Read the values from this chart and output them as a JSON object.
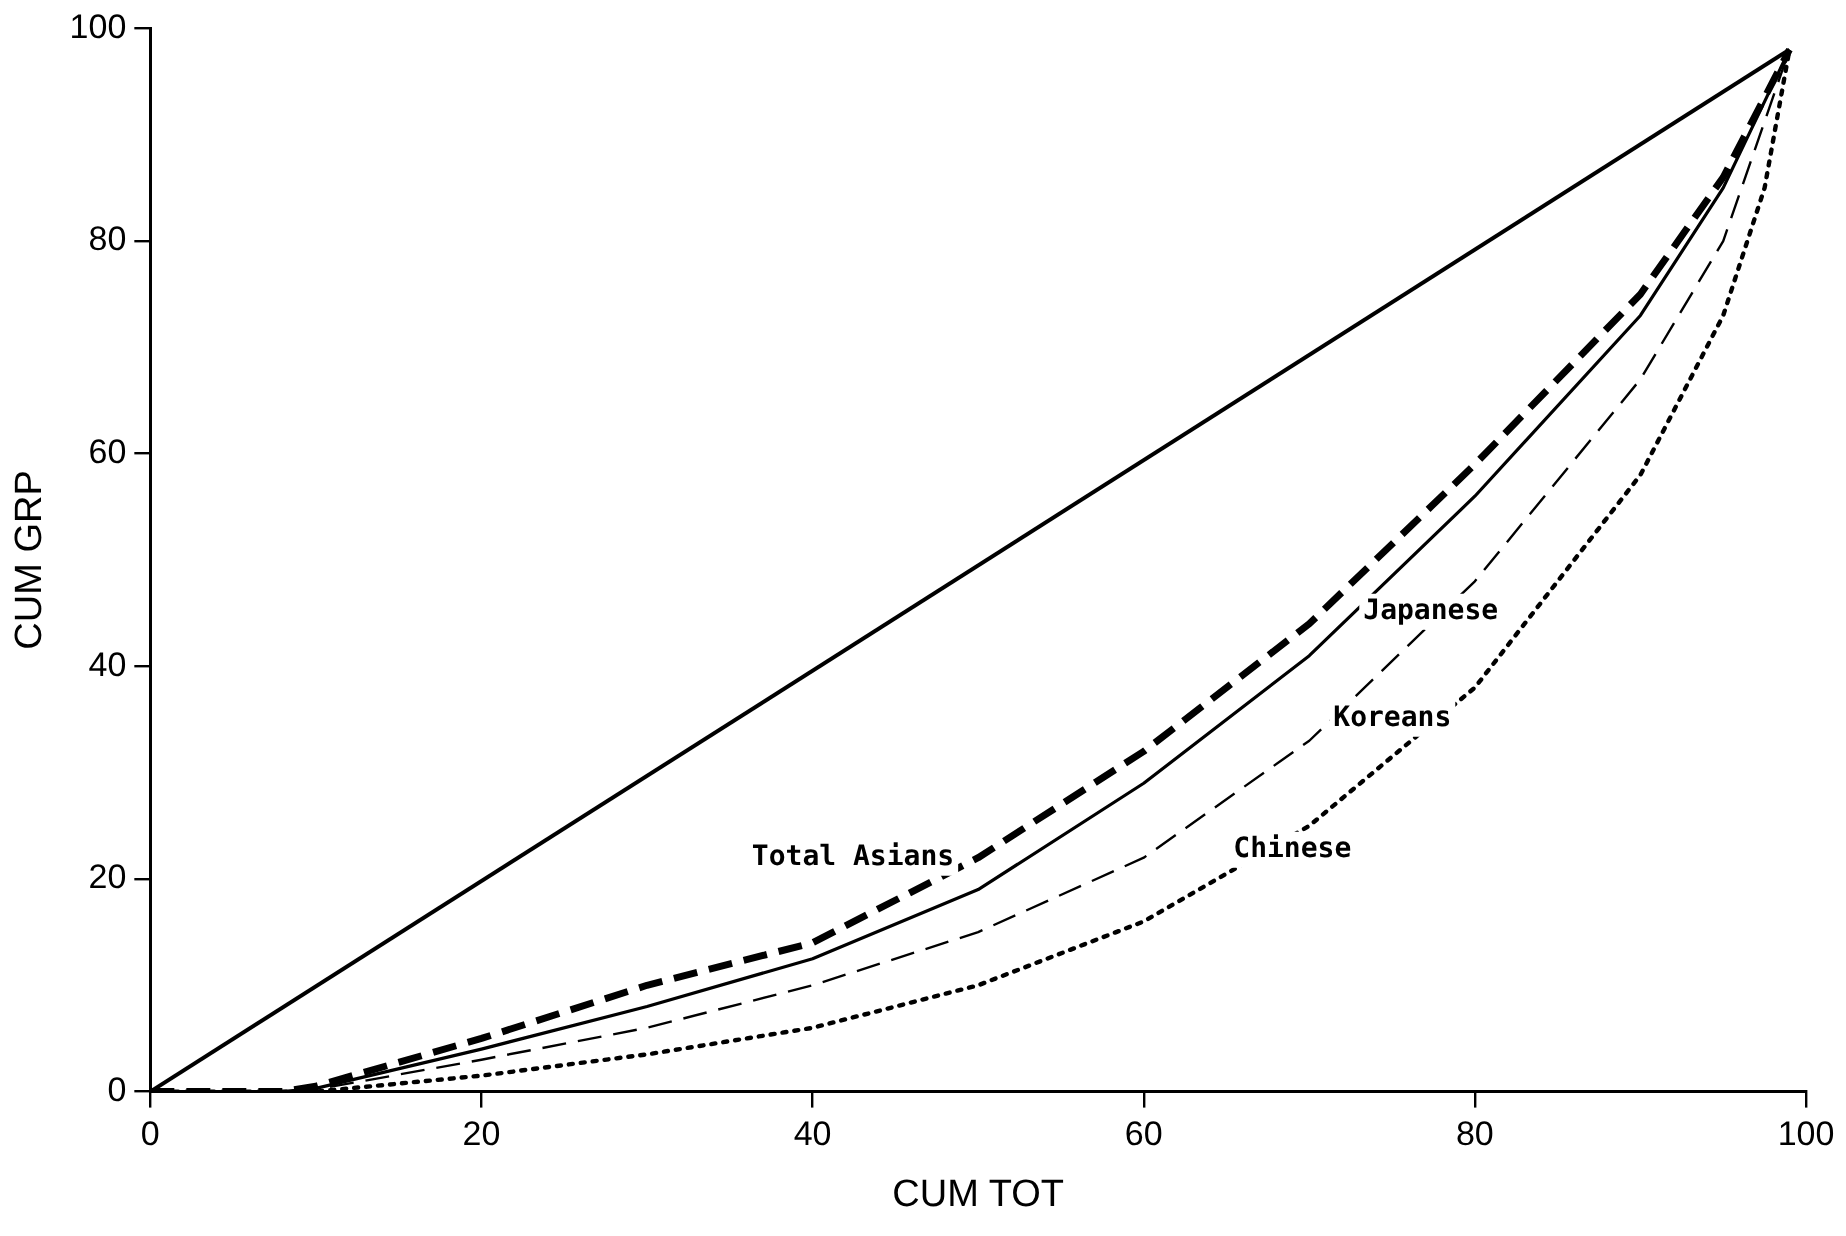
{
  "chart_data": {
    "type": "line",
    "xlabel": "CUM TOT",
    "ylabel": "CUM GRP",
    "xlim": [
      0,
      100
    ],
    "xticks": [
      0,
      20,
      40,
      60,
      80,
      100
    ],
    "ylim": [
      0,
      100
    ],
    "yticks": [
      0,
      20,
      40,
      60,
      80,
      100
    ],
    "grid": false,
    "legend": false,
    "marker": "none",
    "series": [
      {
        "color": "#000000",
        "line_style": "solid",
        "x": [
          0,
          99
        ],
        "values": [
          0,
          98
        ]
      },
      {
        "name": "Total Asians",
        "color": "#000000",
        "line_style": "dashed",
        "x": [
          0,
          8,
          10,
          20,
          30,
          40,
          50,
          60,
          70,
          80,
          90,
          95,
          99
        ],
        "values": [
          0,
          0,
          0.5,
          5,
          10,
          14,
          22,
          32,
          44,
          59,
          75,
          86,
          98
        ]
      },
      {
        "name": "Japanese",
        "color": "#000000",
        "line_style": "solid",
        "x": [
          0,
          8,
          10,
          20,
          30,
          40,
          50,
          60,
          70,
          80,
          90,
          95,
          99
        ],
        "values": [
          0,
          0,
          0.3,
          4,
          8,
          12.5,
          19,
          29,
          41,
          56,
          73,
          85,
          98
        ]
      },
      {
        "name": "Koreans",
        "color": "#000000",
        "line_style": "dashed",
        "x": [
          0,
          8,
          10,
          20,
          30,
          40,
          50,
          60,
          70,
          80,
          90,
          95,
          99
        ],
        "values": [
          0,
          0,
          0.2,
          3,
          6,
          10,
          15,
          22,
          33,
          48,
          67,
          80,
          98
        ]
      },
      {
        "name": "Chinese",
        "color": "#000000",
        "line_style": "dotted",
        "x": [
          0,
          8,
          10,
          20,
          30,
          40,
          50,
          60,
          70,
          80,
          90,
          95,
          97.5,
          99
        ],
        "values": [
          0,
          0,
          0,
          1.5,
          3.5,
          6,
          10,
          16,
          25,
          38,
          58,
          73,
          85,
          98
        ]
      }
    ]
  }
}
